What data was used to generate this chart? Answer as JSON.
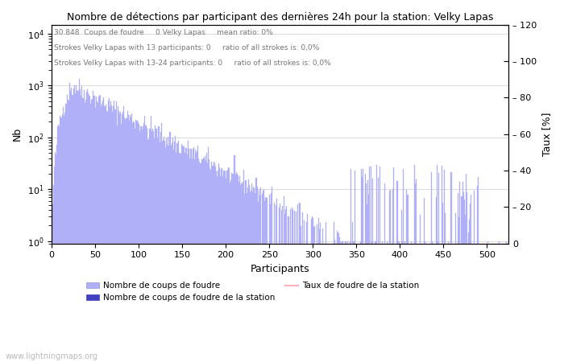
{
  "title": "Nombre de détections par participant des dernières 24h pour la station: Velky Lapas",
  "annotation_line1": "30.848  Coups de foudre     0 Velky Lapas     mean ratio: 0%",
  "annotation_line2": "Strokes Velky Lapas with 13 participants: 0     ratio of all strokes is: 0,0%",
  "annotation_line3": "Strokes Velky Lapas with 13-24 participants: 0     ratio of all strokes is: 0,0%",
  "xlabel": "Participants",
  "ylabel_left": "Nb",
  "ylabel_right": "Taux [%]",
  "xlim": [
    0,
    525
  ],
  "ylim_right": [
    0,
    120
  ],
  "bar_color": "#b0b0f8",
  "station_bar_color": "#4040c0",
  "taux_line_color": "#ffb0c0",
  "legend_labels": [
    "Nombre de coups de foudre",
    "Nombre de coups de foudre de la station",
    "Taux de foudre de la station"
  ],
  "watermark": "www.lightningmaps.org",
  "n_participants": 525,
  "right_yticks": [
    0,
    20,
    40,
    60,
    80,
    100,
    120
  ],
  "left_yticks": [
    1,
    10,
    100,
    1000,
    10000
  ],
  "left_yticklabels": [
    "10^0",
    "10^1",
    "10^2",
    "10^3",
    "10^4"
  ],
  "xticks": [
    0,
    50,
    100,
    150,
    200,
    250,
    300,
    350,
    400,
    450,
    500
  ]
}
